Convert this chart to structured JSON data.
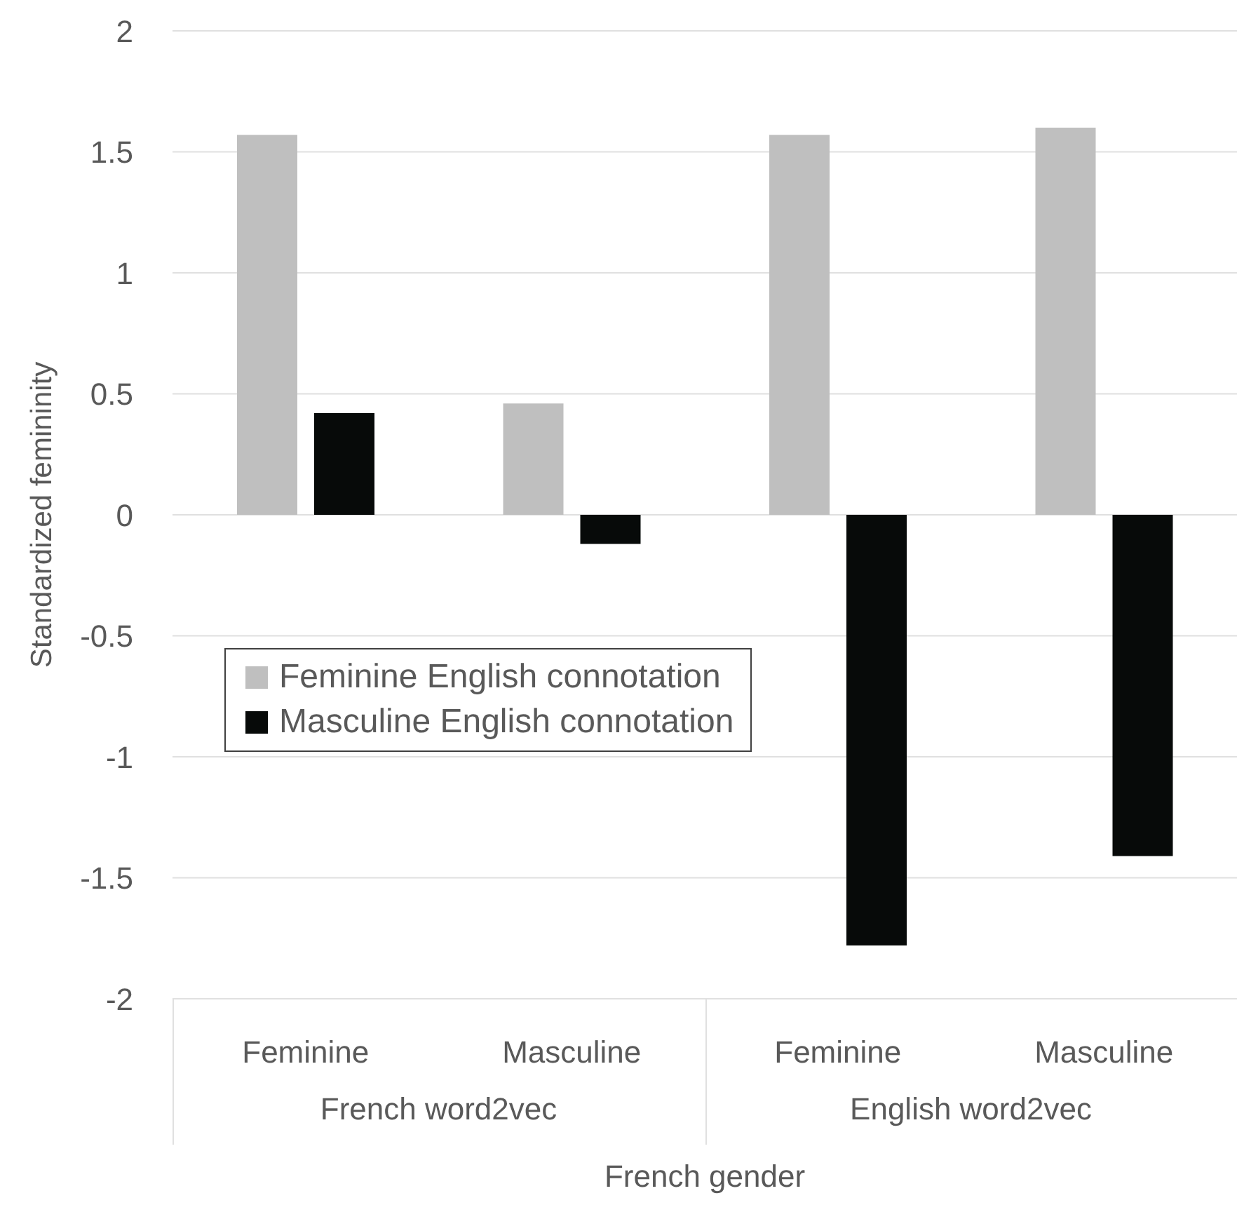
{
  "chart_data": {
    "type": "bar",
    "xlabel": "French gender",
    "ylabel": "Standardized femininity",
    "categories": [
      "Feminine",
      "Masculine",
      "Feminine",
      "Masculine"
    ],
    "series": [
      {
        "name": "Feminine English connotation",
        "color": "#bfbfbf",
        "values": [
          1.57,
          0.46,
          1.57,
          1.6
        ]
      },
      {
        "name": "Masculine English connotation",
        "color": "#070a09",
        "values": [
          0.42,
          -0.12,
          -1.78,
          -1.41
        ]
      }
    ],
    "annotations": [
      "French word2vec",
      "English word2vec"
    ],
    "ylim": [
      -2,
      2
    ],
    "yticks": [
      -2,
      -1.5,
      -1,
      -0.5,
      0,
      0.5,
      1,
      1.5,
      2
    ],
    "grid": "y",
    "legend": "left"
  }
}
